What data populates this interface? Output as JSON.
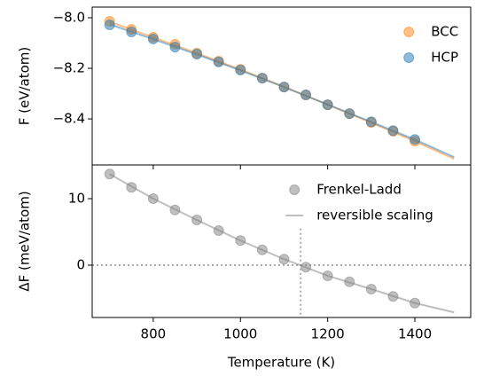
{
  "chart_data": [
    {
      "type": "scatter",
      "ylabel": "F (eV/atom)",
      "xlim": [
        660,
        1528
      ],
      "ylim": [
        -8.582,
        -7.958
      ],
      "yticks": [
        {
          "value": -8.0,
          "label": "−8.0"
        },
        {
          "value": -8.2,
          "label": "−8.2"
        },
        {
          "value": -8.4,
          "label": "−8.4"
        }
      ],
      "legend": "upper right",
      "series": [
        {
          "name": "BCC",
          "color": "#ff7f0e",
          "x": [
            700,
            750,
            800,
            850,
            900,
            950,
            1000,
            1050,
            1100,
            1150,
            1200,
            1250,
            1300,
            1350,
            1400
          ],
          "values": [
            -8.014,
            -8.046,
            -8.077,
            -8.105,
            -8.14,
            -8.172,
            -8.204,
            -8.239,
            -8.274,
            -8.305,
            -8.344,
            -8.379,
            -8.414,
            -8.449,
            -8.488
          ],
          "curve_x": [
            700,
            800,
            900,
            1000,
            1100,
            1200,
            1300,
            1400,
            1490
          ],
          "curve_values": [
            -8.016,
            -8.078,
            -8.14,
            -8.205,
            -8.273,
            -8.344,
            -8.415,
            -8.488,
            -8.558
          ]
        },
        {
          "name": "HCP",
          "color": "#1f77b4",
          "x": [
            700,
            750,
            800,
            850,
            900,
            950,
            1000,
            1050,
            1100,
            1150,
            1200,
            1250,
            1300,
            1350,
            1400
          ],
          "values": [
            -8.028,
            -8.056,
            -8.084,
            -8.116,
            -8.144,
            -8.175,
            -8.207,
            -8.239,
            -8.274,
            -8.305,
            -8.344,
            -8.379,
            -8.411,
            -8.446,
            -8.481
          ],
          "curve_x": [
            700,
            800,
            900,
            1000,
            1100,
            1200,
            1300,
            1400,
            1490
          ],
          "curve_values": [
            -8.026,
            -8.085,
            -8.145,
            -8.208,
            -8.274,
            -8.343,
            -8.412,
            -8.482,
            -8.551
          ]
        }
      ]
    },
    {
      "type": "scatter",
      "ylabel": "ΔF (meV/atom)",
      "xlabel": "Temperature (K)",
      "xlim": [
        660,
        1528
      ],
      "ylim": [
        -7.87,
        15.07
      ],
      "xticks": [
        800,
        1000,
        1200,
        1400
      ],
      "yticks": [
        0,
        10
      ],
      "legend": "upper right",
      "hline": 0,
      "vline": {
        "x": 1138,
        "ymax": 5.5
      },
      "series": [
        {
          "name": "Frenkel-Ladd",
          "color": "#808080",
          "type": "scatter",
          "x": [
            700,
            750,
            800,
            850,
            900,
            950,
            1000,
            1050,
            1100,
            1150,
            1200,
            1250,
            1300,
            1350,
            1400
          ],
          "values": [
            13.7,
            11.7,
            10.0,
            8.3,
            6.8,
            5.2,
            3.7,
            2.3,
            0.9,
            -0.3,
            -1.6,
            -2.5,
            -3.6,
            -4.7,
            -5.7
          ]
        },
        {
          "name": "reversible scaling",
          "color": "#808080",
          "type": "line",
          "x": [
            700,
            800,
            900,
            1000,
            1100,
            1200,
            1300,
            1400,
            1490
          ],
          "values": [
            13.7,
            10.0,
            6.8,
            3.7,
            0.9,
            -1.6,
            -3.6,
            -5.7,
            -7.1
          ]
        }
      ]
    }
  ]
}
